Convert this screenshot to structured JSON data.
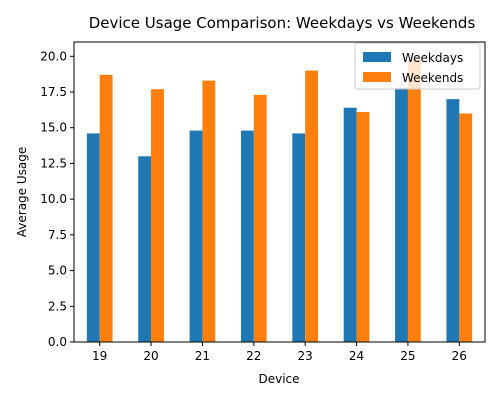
{
  "chart_data": {
    "type": "bar",
    "title": "Device Usage Comparison: Weekdays vs Weekends",
    "xlabel": "Device",
    "ylabel": "Average Usage",
    "categories": [
      "19",
      "20",
      "21",
      "22",
      "23",
      "24",
      "25",
      "26"
    ],
    "series": [
      {
        "name": "Weekdays",
        "color": "#1f77b4",
        "values": [
          14.6,
          13.0,
          14.8,
          14.8,
          14.6,
          16.4,
          17.8,
          17.0
        ]
      },
      {
        "name": "Weekends",
        "color": "#ff7f0e",
        "values": [
          18.7,
          17.7,
          18.3,
          17.3,
          19.0,
          16.1,
          19.8,
          16.0
        ]
      }
    ],
    "ylim": [
      0,
      21
    ],
    "yticks": [
      "0.0",
      "2.5",
      "5.0",
      "7.5",
      "10.0",
      "12.5",
      "15.0",
      "17.5",
      "20.0"
    ],
    "grid": false,
    "legend_position": "top-right"
  }
}
